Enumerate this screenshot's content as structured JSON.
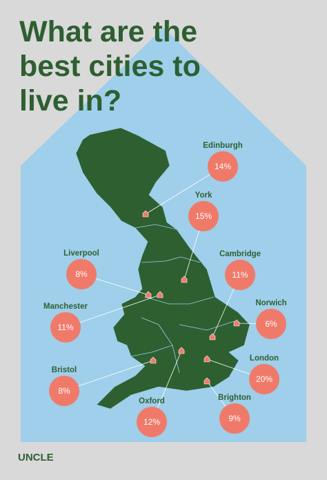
{
  "title": [
    "What are the",
    "best cities to",
    "live in?"
  ],
  "cities": [
    {
      "name": "Edinburgh",
      "value": "14%"
    },
    {
      "name": "York",
      "value": "15%"
    },
    {
      "name": "Cambridge",
      "value": "11%"
    },
    {
      "name": "Norwich",
      "value": "6%"
    },
    {
      "name": "London",
      "value": "20%"
    },
    {
      "name": "Brighton",
      "value": "9%"
    },
    {
      "name": "Oxford",
      "value": "12%"
    },
    {
      "name": "Bristol",
      "value": "8%"
    },
    {
      "name": "Manchester",
      "value": "11%"
    },
    {
      "name": "Liverpool",
      "value": "8%"
    }
  ],
  "brand": "UNCLE"
}
